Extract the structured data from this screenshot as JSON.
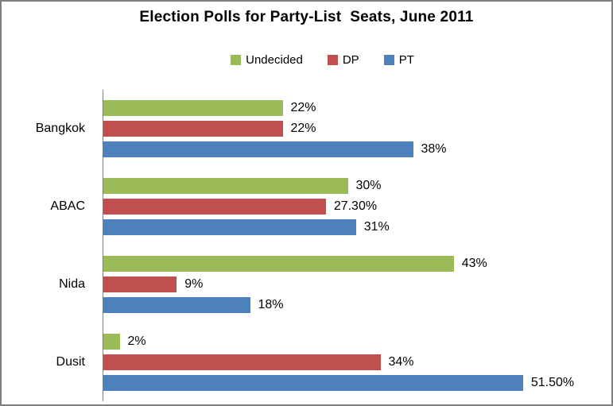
{
  "window": {
    "background": "#ffffff",
    "border_color": "#7f7f7f",
    "axis_line_color": "#808080",
    "text_color": "#000000"
  },
  "chart_data": {
    "type": "bar",
    "orientation": "horizontal",
    "title": "Election Polls for Party-List  Seats, June 2011",
    "categories": [
      "Bangkok",
      "ABAC",
      "Nida",
      "Dusit"
    ],
    "series": [
      {
        "name": "Undecided",
        "color": "#9BBB59",
        "values": [
          22,
          30,
          43,
          2
        ],
        "labels": [
          "22%",
          "30%",
          "43%",
          "2%"
        ]
      },
      {
        "name": "DP",
        "color": "#C0504D",
        "values": [
          22,
          27.3,
          9,
          34
        ],
        "labels": [
          "22%",
          "27.30%",
          "9%",
          "34%"
        ]
      },
      {
        "name": "PT",
        "color": "#4F81BD",
        "values": [
          38,
          31,
          18,
          51.5
        ],
        "labels": [
          "38%",
          "31%",
          "18%",
          "51.50%"
        ]
      }
    ],
    "xlim": [
      0,
      62
    ],
    "grid": false,
    "legend_position": "top",
    "value_labels": "outside-end",
    "bar_order_top_to_bottom": [
      "Undecided",
      "DP",
      "PT"
    ]
  }
}
